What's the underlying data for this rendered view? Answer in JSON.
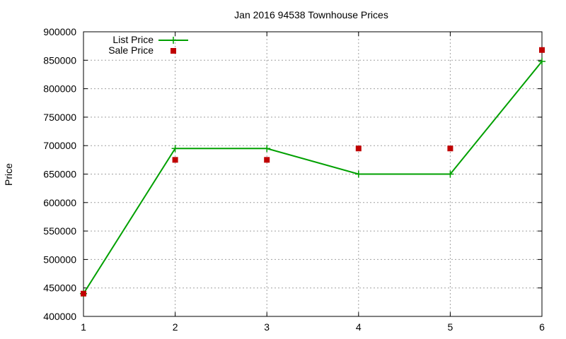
{
  "chart_data": {
    "type": "line",
    "title": "Jan 2016 94538 Townhouse Prices",
    "xlabel": "",
    "ylabel": "Price",
    "x": [
      1,
      2,
      3,
      4,
      5,
      6
    ],
    "xlim": [
      1,
      6
    ],
    "ylim": [
      400000,
      900000
    ],
    "xticks": [
      "1",
      "2",
      "3",
      "4",
      "5",
      "6"
    ],
    "yticks": [
      "400000",
      "450000",
      "500000",
      "550000",
      "600000",
      "650000",
      "700000",
      "750000",
      "800000",
      "850000",
      "900000"
    ],
    "grid": true,
    "legend_position": "top-left",
    "series": [
      {
        "name": "List Price",
        "style": "line-with-plus-markers",
        "color": "#00a000",
        "values": [
          440000,
          695000,
          695000,
          650000,
          650000,
          848000
        ]
      },
      {
        "name": "Sale Price",
        "style": "square-markers",
        "color": "#c00000",
        "values": [
          440000,
          675000,
          675000,
          695000,
          695000,
          868000
        ]
      }
    ]
  }
}
